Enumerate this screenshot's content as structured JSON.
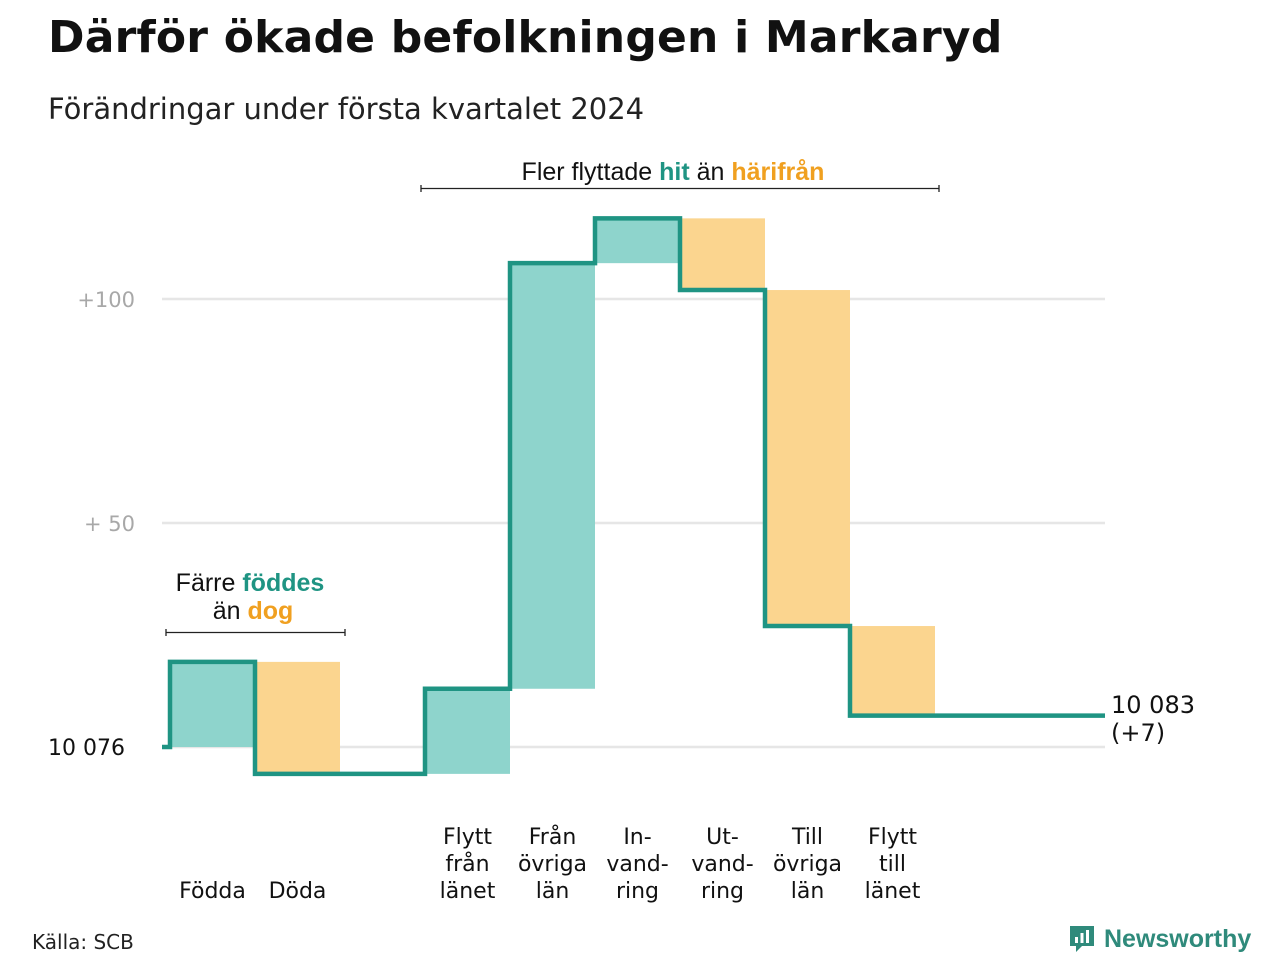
{
  "header": {
    "title": "Därför ökade befolkningen i Markaryd",
    "subtitle": "Förändringar under första kvartalet 2024"
  },
  "footer": {
    "source": "Källa: SCB",
    "brand": "Newsworthy"
  },
  "colors": {
    "line": "#1f9483",
    "increase": "#8ed4cc",
    "decrease": "#fbd58f",
    "accent_teal": "#1f9483",
    "accent_orange": "#f0a020",
    "grid": "#e6e6e6",
    "tick_text": "#a8a8a8"
  },
  "annotations": {
    "natural": {
      "line1": "Färre",
      "line1_highlight": "föddes",
      "line2": "än",
      "line2_highlight": "dog"
    },
    "migration": {
      "part1": "Fler flyttade",
      "highlight1": "hit",
      "part2": "än",
      "highlight2": "härifrån"
    }
  },
  "chart_data": {
    "type": "waterfall",
    "start_label": "10  076",
    "start_value": 10076,
    "end_label_line1": "10 083",
    "end_label_line2": "(+7)",
    "end_value": 10083,
    "y_ticks": [
      {
        "value": 100,
        "label": "+100"
      },
      {
        "value": 50,
        "label": "+  50"
      }
    ],
    "ylim": [
      -6,
      120
    ],
    "steps": [
      {
        "label": [
          "",
          "",
          "Födda"
        ],
        "change": 19,
        "kind": "increase"
      },
      {
        "label": [
          "",
          "",
          "Döda"
        ],
        "change": -25,
        "kind": "decrease"
      },
      {
        "label": [
          "",
          "",
          ""
        ],
        "change": 0,
        "kind": "gap"
      },
      {
        "label": [
          "Flytt",
          "från",
          "länet"
        ],
        "change": 19,
        "kind": "increase"
      },
      {
        "label": [
          "Från",
          "övriga",
          "län"
        ],
        "change": 95,
        "kind": "increase"
      },
      {
        "label": [
          "In-",
          "vand-",
          "ring"
        ],
        "change": 10,
        "kind": "increase"
      },
      {
        "label": [
          "Ut-",
          "vand-",
          "ring"
        ],
        "change": -16,
        "kind": "decrease"
      },
      {
        "label": [
          "Till",
          "övriga",
          "län"
        ],
        "change": -75,
        "kind": "decrease"
      },
      {
        "label": [
          "Flytt",
          "till",
          "länet"
        ],
        "change": -20,
        "kind": "decrease"
      },
      {
        "label": [
          "",
          "",
          ""
        ],
        "change": 0,
        "kind": "gap"
      }
    ]
  }
}
